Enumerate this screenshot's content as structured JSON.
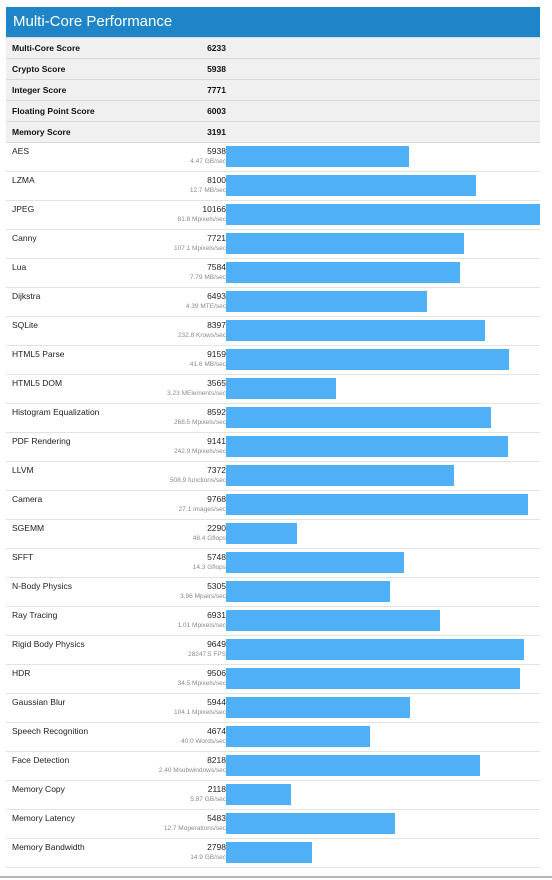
{
  "title": "Multi-Core Performance",
  "summary": [
    {
      "label": "Multi-Core Score",
      "value": "6233"
    },
    {
      "label": "Crypto Score",
      "value": "5938"
    },
    {
      "label": "Integer Score",
      "value": "7771"
    },
    {
      "label": "Floating Point Score",
      "value": "6003"
    },
    {
      "label": "Memory Score",
      "value": "3191"
    }
  ],
  "colors": {
    "header": "#1e86c8",
    "bar": "#4fb0f7"
  },
  "chart_data": {
    "type": "bar",
    "orientation": "horizontal",
    "xlim": [
      0,
      10166
    ],
    "categories": [
      "AES",
      "LZMA",
      "JPEG",
      "Canny",
      "Lua",
      "Dijkstra",
      "SQLite",
      "HTML5 Parse",
      "HTML5 DOM",
      "Histogram Equalization",
      "PDF Rendering",
      "LLVM",
      "Camera",
      "SGEMM",
      "SFFT",
      "N-Body Physics",
      "Ray Tracing",
      "Rigid Body Physics",
      "HDR",
      "Gaussian Blur",
      "Speech Recognition",
      "Face Detection",
      "Memory Copy",
      "Memory Latency",
      "Memory Bandwidth"
    ],
    "values": [
      5938,
      8100,
      10166,
      7721,
      7584,
      6493,
      8397,
      9159,
      3565,
      8592,
      9141,
      7372,
      9768,
      2290,
      5748,
      5305,
      6931,
      9649,
      9506,
      5944,
      4674,
      8218,
      2118,
      5483,
      2798
    ],
    "sublabels": [
      "4.47 GB/sec",
      "12.7 MB/sec",
      "81.8 Mpixels/sec",
      "107.1 Mpixels/sec",
      "7.79 MB/sec",
      "4.39 MTE/sec",
      "232.8 Krows/sec",
      "41.6 MB/sec",
      "3.23 MElements/sec",
      "268.5 Mpixels/sec",
      "242.9 Mpixels/sec",
      "508.9 functions/sec",
      "27.1 images/sec",
      "48.4 Gflops",
      "14.3 Gflops",
      "3.96 Mpairs/sec",
      "1.01 Mpixels/sec",
      "28247.5 FPS",
      "34.5 Mpixels/sec",
      "104.1 Mpixels/sec",
      "40.0 Words/sec",
      "2.40 Msubwindows/sec",
      "5.87 GB/sec",
      "12.7 Moperations/sec",
      "14.9 GB/sec"
    ]
  }
}
